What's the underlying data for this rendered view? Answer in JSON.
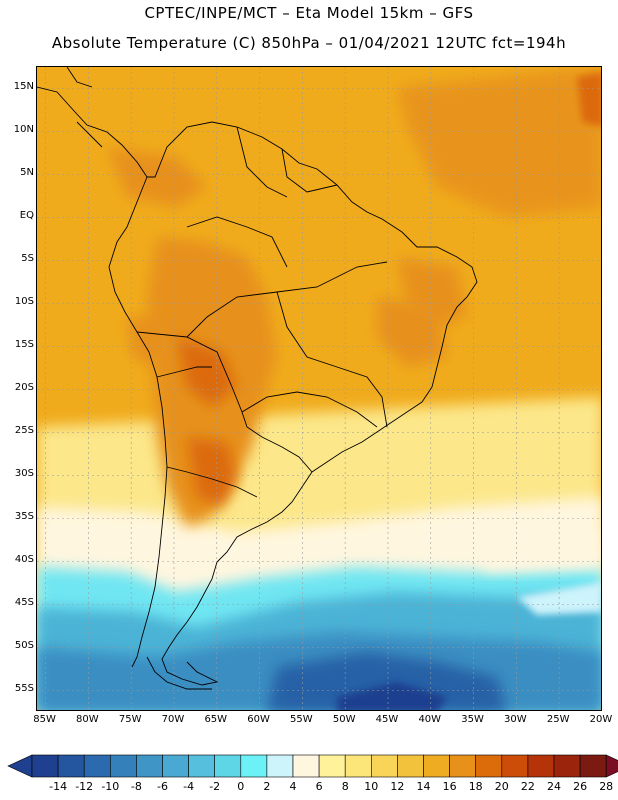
{
  "header": {
    "line1": "CPTEC/INPE/MCT –  Eta Model 15km – GFS",
    "line2": "Absolute Temperature (C) 850hPa – 01/04/2021 12UTC fct=194h"
  },
  "map": {
    "lat_labels": [
      "15N",
      "10N",
      "5N",
      "EQ",
      "5S",
      "10S",
      "15S",
      "20S",
      "25S",
      "30S",
      "35S",
      "40S",
      "45S",
      "50S",
      "55S"
    ],
    "lon_labels": [
      "85W",
      "80W",
      "75W",
      "70W",
      "65W",
      "60W",
      "55W",
      "50W",
      "45W",
      "40W",
      "35W",
      "30W",
      "25W",
      "20W"
    ],
    "lat_range": [
      17,
      -58
    ],
    "lon_range": [
      -86,
      -20
    ],
    "grid": true
  },
  "colorbar": {
    "labels": [
      "-14",
      "-12",
      "-10",
      "-8",
      "-6",
      "-4",
      "-2",
      "0",
      "2",
      "4",
      "6",
      "8",
      "10",
      "12",
      "14",
      "16",
      "18",
      "20",
      "22",
      "24",
      "26",
      "28"
    ],
    "colors": [
      "#1f3f8f",
      "#2456a0",
      "#2b6aae",
      "#3480bb",
      "#3f96c6",
      "#4aa9d2",
      "#56bfdd",
      "#5fd6e6",
      "#6cf2f6",
      "#cdf3fb",
      "#fff6df",
      "#fff29a",
      "#fce579",
      "#f8d558",
      "#f3c23c",
      "#eeac22",
      "#e7911b",
      "#dc6b0a",
      "#cc4d08",
      "#b43308",
      "#9a240c",
      "#7a1a10"
    ],
    "under_color": "#1f3f8f",
    "over_color": "#7a0e24"
  }
}
